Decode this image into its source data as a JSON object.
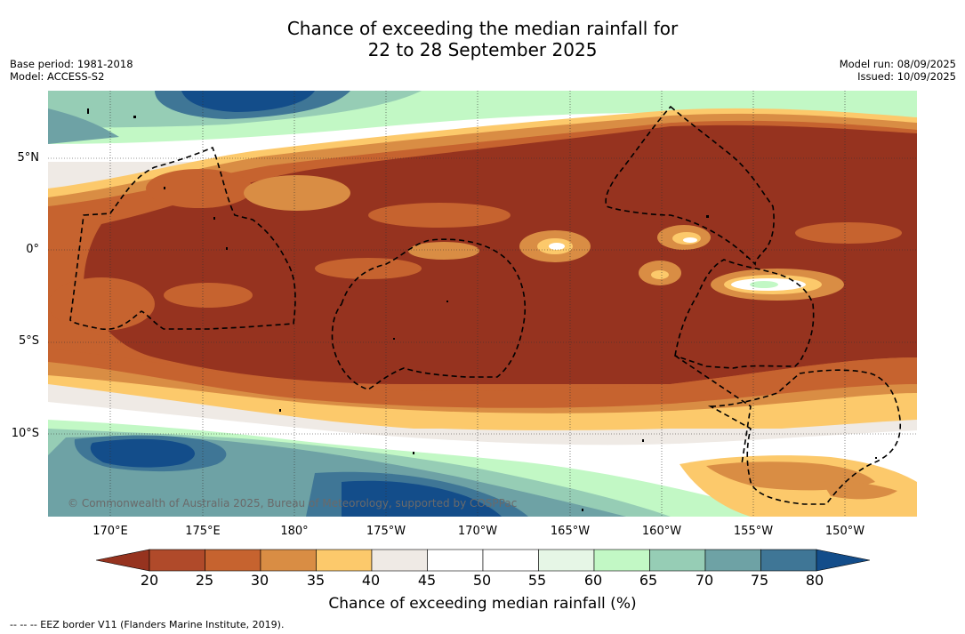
{
  "title": {
    "line1": "Chance of exceeding the median rainfall for",
    "line2": "22 to 28 September 2025"
  },
  "meta_left": {
    "base_period": "Base period: 1981-2018",
    "model": "Model: ACCESS-S2"
  },
  "meta_right": {
    "model_run": "Model run: 08/09/2025",
    "issued": "Issued: 10/09/2025"
  },
  "map": {
    "lat_labels": [
      "5°N",
      "0°",
      "5°S",
      "10°S"
    ],
    "lon_labels": [
      "170°E",
      "175°E",
      "180°",
      "175°W",
      "170°W",
      "165°W",
      "160°W",
      "155°W",
      "150°W"
    ],
    "credit": "© Commonwealth of Australia 2025, Bureau of Meteorology, supported by COSPPac",
    "eez_border_style": "dashed black"
  },
  "colorbar": {
    "ticks": [
      "20",
      "25",
      "30",
      "35",
      "40",
      "45",
      "50",
      "55",
      "60",
      "65",
      "70",
      "75",
      "80"
    ],
    "colors": [
      "#96331f",
      "#b04a2a",
      "#c6632f",
      "#d98d44",
      "#fcc96b",
      "#efeae5",
      "#ffffff",
      "#ffffff",
      "#e6f6e6",
      "#c2f8c5",
      "#96cdb5",
      "#6ea2a5",
      "#3f7696",
      "#134d8a"
    ],
    "label": "Chance of exceeding median rainfall (%)"
  },
  "legend_note": "-- -- -- EEZ border V11 (Flanders Marine Institute, 2019)."
}
